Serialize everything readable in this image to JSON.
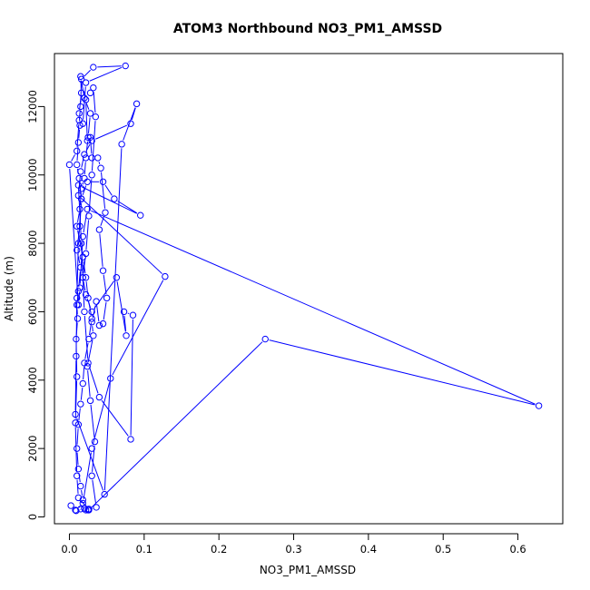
{
  "chart_data": {
    "type": "line",
    "title": "ATOM3 Northbound NO3_PM1_AMSSD",
    "xlabel": "NO3_PM1_AMSSD",
    "ylabel": "Altitude (m)",
    "xlim": [
      -0.02,
      0.66
    ],
    "ylim": [
      -200,
      13550
    ],
    "x_ticks": [
      0.0,
      0.1,
      0.2,
      0.3,
      0.4,
      0.5,
      0.6
    ],
    "x_tick_labels": [
      "0.0",
      "0.1",
      "0.2",
      "0.3",
      "0.4",
      "0.5",
      "0.6"
    ],
    "y_ticks": [
      0,
      2000,
      4000,
      6000,
      8000,
      10000,
      12000
    ],
    "y_tick_labels": [
      "0",
      "2000",
      "4000",
      "6000",
      "8000",
      "10000",
      "12000"
    ],
    "grid": false,
    "legend": "none",
    "marker": "open-circle",
    "color": "#0000ff",
    "series": [
      {
        "points": [
          [
            0.002,
            330
          ],
          [
            0.008,
            200
          ],
          [
            0.015,
            230
          ],
          [
            0.022,
            200
          ],
          [
            0.026,
            230
          ],
          [
            0.012,
            560
          ],
          [
            0.01,
            1200
          ],
          [
            0.008,
            2750
          ],
          [
            0.01,
            4100
          ],
          [
            0.009,
            5200
          ],
          [
            0.011,
            5800
          ],
          [
            0.01,
            6200
          ],
          [
            0.012,
            6600
          ],
          [
            0.015,
            7300
          ],
          [
            0.01,
            7800
          ],
          [
            0.014,
            8500
          ],
          [
            0.016,
            9300
          ],
          [
            0.013,
            9900
          ],
          [
            0.01,
            10300
          ],
          [
            0.012,
            10950
          ],
          [
            0.014,
            11450
          ],
          [
            0.013,
            11800
          ],
          [
            0.016,
            12400
          ],
          [
            0.015,
            12880
          ],
          [
            0.02,
            12250
          ],
          [
            0.028,
            11800
          ],
          [
            0.025,
            11100
          ],
          [
            0.022,
            10500
          ],
          [
            0.02,
            9900
          ],
          [
            0.016,
            9600
          ],
          [
            0.014,
            9000
          ],
          [
            0.01,
            8500
          ],
          [
            0.018,
            7600
          ],
          [
            0.022,
            7000
          ],
          [
            0.025,
            6400
          ],
          [
            0.03,
            5800
          ],
          [
            0.026,
            5200
          ],
          [
            0.02,
            4500
          ],
          [
            0.018,
            3900
          ],
          [
            0.015,
            3300
          ],
          [
            0.012,
            2700
          ],
          [
            0.01,
            2000
          ],
          [
            0.012,
            1400
          ],
          [
            0.015,
            900
          ],
          [
            0.018,
            500
          ],
          [
            0.02,
            250
          ],
          [
            0.025,
            200
          ],
          [
            0.036,
            280
          ],
          [
            0.03,
            1200
          ],
          [
            0.034,
            2200
          ],
          [
            0.028,
            3400
          ],
          [
            0.024,
            4400
          ],
          [
            0.032,
            5300
          ],
          [
            0.03,
            5700
          ],
          [
            0.036,
            6300
          ],
          [
            0.04,
            5600
          ],
          [
            0.045,
            5650
          ],
          [
            0.05,
            6400
          ],
          [
            0.045,
            7200
          ],
          [
            0.04,
            8400
          ],
          [
            0.048,
            8900
          ],
          [
            0.042,
            10200
          ],
          [
            0.038,
            10500
          ],
          [
            0.03,
            10500
          ],
          [
            0.028,
            11100
          ],
          [
            0.024,
            11000
          ],
          [
            0.022,
            12200
          ],
          [
            0.028,
            12400
          ],
          [
            0.032,
            12550
          ],
          [
            0.035,
            11700
          ],
          [
            0.03,
            10000
          ],
          [
            0.026,
            8800
          ],
          [
            0.022,
            7700
          ],
          [
            0.018,
            7000
          ],
          [
            0.022,
            6500
          ],
          [
            0.03,
            6000
          ],
          [
            0.063,
            7000
          ],
          [
            0.076,
            5300
          ],
          [
            0.073,
            6000
          ],
          [
            0.085,
            5900
          ],
          [
            0.082,
            2270
          ],
          [
            0.04,
            3500
          ],
          [
            0.025,
            4500
          ],
          [
            0.02,
            6000
          ],
          [
            0.016,
            8000
          ],
          [
            0.012,
            9700
          ],
          [
            0.095,
            8820
          ],
          [
            0.06,
            9300
          ],
          [
            0.045,
            9800
          ],
          [
            0.024,
            9800
          ],
          [
            0.016,
            9300
          ],
          [
            0.012,
            8000
          ],
          [
            0.01,
            6400
          ],
          [
            0.009,
            4700
          ],
          [
            0.008,
            3000
          ],
          [
            0.047,
            660
          ],
          [
            0.07,
            10900
          ],
          [
            0.09,
            12080
          ],
          [
            0.082,
            11500
          ],
          [
            0.03,
            11000
          ],
          [
            0.02,
            10600
          ],
          [
            0.015,
            10100
          ],
          [
            0.012,
            9400
          ],
          [
            0.128,
            7030
          ],
          [
            0.055,
            4050
          ],
          [
            0.03,
            2000
          ],
          [
            0.018,
            400
          ],
          [
            0.009,
            180
          ],
          [
            0.02,
            250
          ],
          [
            0.026,
            200
          ],
          [
            0.262,
            5200
          ],
          [
            0.628,
            3250
          ],
          [
            0.024,
            9000
          ],
          [
            0.018,
            8200
          ],
          [
            0.014,
            6700
          ],
          [
            0.012,
            6200
          ],
          [
            0.0,
            10300
          ],
          [
            0.01,
            10700
          ],
          [
            0.013,
            11600
          ],
          [
            0.015,
            12000
          ],
          [
            0.016,
            12800
          ],
          [
            0.032,
            13150
          ],
          [
            0.075,
            13190
          ],
          [
            0.022,
            12700
          ],
          [
            0.018,
            11500
          ]
        ]
      }
    ]
  }
}
